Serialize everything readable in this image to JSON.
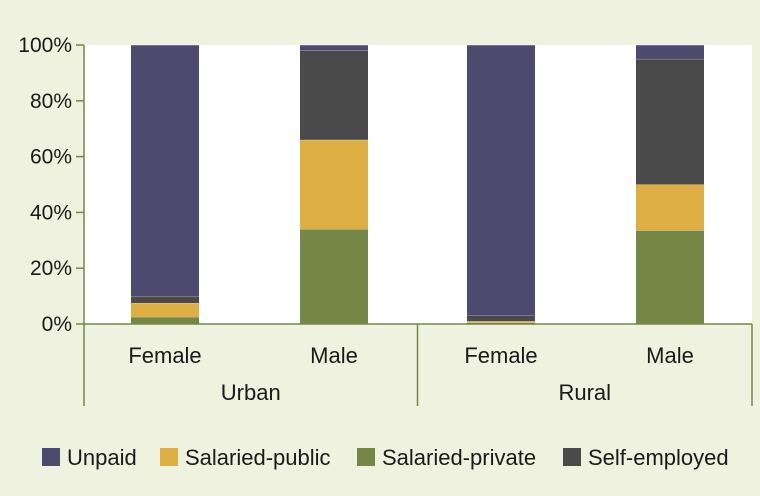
{
  "chart_data": {
    "type": "bar",
    "stacked": true,
    "y_axis": {
      "ylim": [
        0,
        100
      ],
      "tick_values": [
        0,
        20,
        40,
        60,
        80,
        100
      ],
      "tick_labels": [
        "0%",
        "20%",
        "40%",
        "60%",
        "80%",
        "100%"
      ]
    },
    "groups": [
      {
        "label": "Urban",
        "categories": [
          "Female",
          "Male"
        ]
      },
      {
        "label": "Rural",
        "categories": [
          "Female",
          "Male"
        ]
      }
    ],
    "categories": [
      "Female",
      "Male",
      "Female",
      "Male"
    ],
    "series": [
      {
        "name": "Salaried-private",
        "color": "#758746",
        "values": [
          2.5,
          34,
          0.5,
          33.5
        ]
      },
      {
        "name": "Salaried-public",
        "color": "#ddae41",
        "values": [
          5,
          32,
          0.5,
          16.5
        ]
      },
      {
        "name": "Self-employed",
        "color": "#4a4a4a",
        "values": [
          2.5,
          32,
          2,
          45
        ]
      },
      {
        "name": "Unpaid",
        "color": "#4c4a6e",
        "values": [
          90,
          2,
          97,
          5
        ]
      }
    ],
    "legend": {
      "position": "bottom",
      "items": [
        {
          "name": "Unpaid",
          "color": "#4c4a6e"
        },
        {
          "name": "Salaried-public",
          "color": "#ddae41"
        },
        {
          "name": "Salaried-private",
          "color": "#758746"
        },
        {
          "name": "Self-employed",
          "color": "#4a4a4a"
        }
      ]
    },
    "grid": false,
    "plot_background": "#ffffff",
    "page_background": "#eef2df",
    "axis_color": "#758746"
  }
}
